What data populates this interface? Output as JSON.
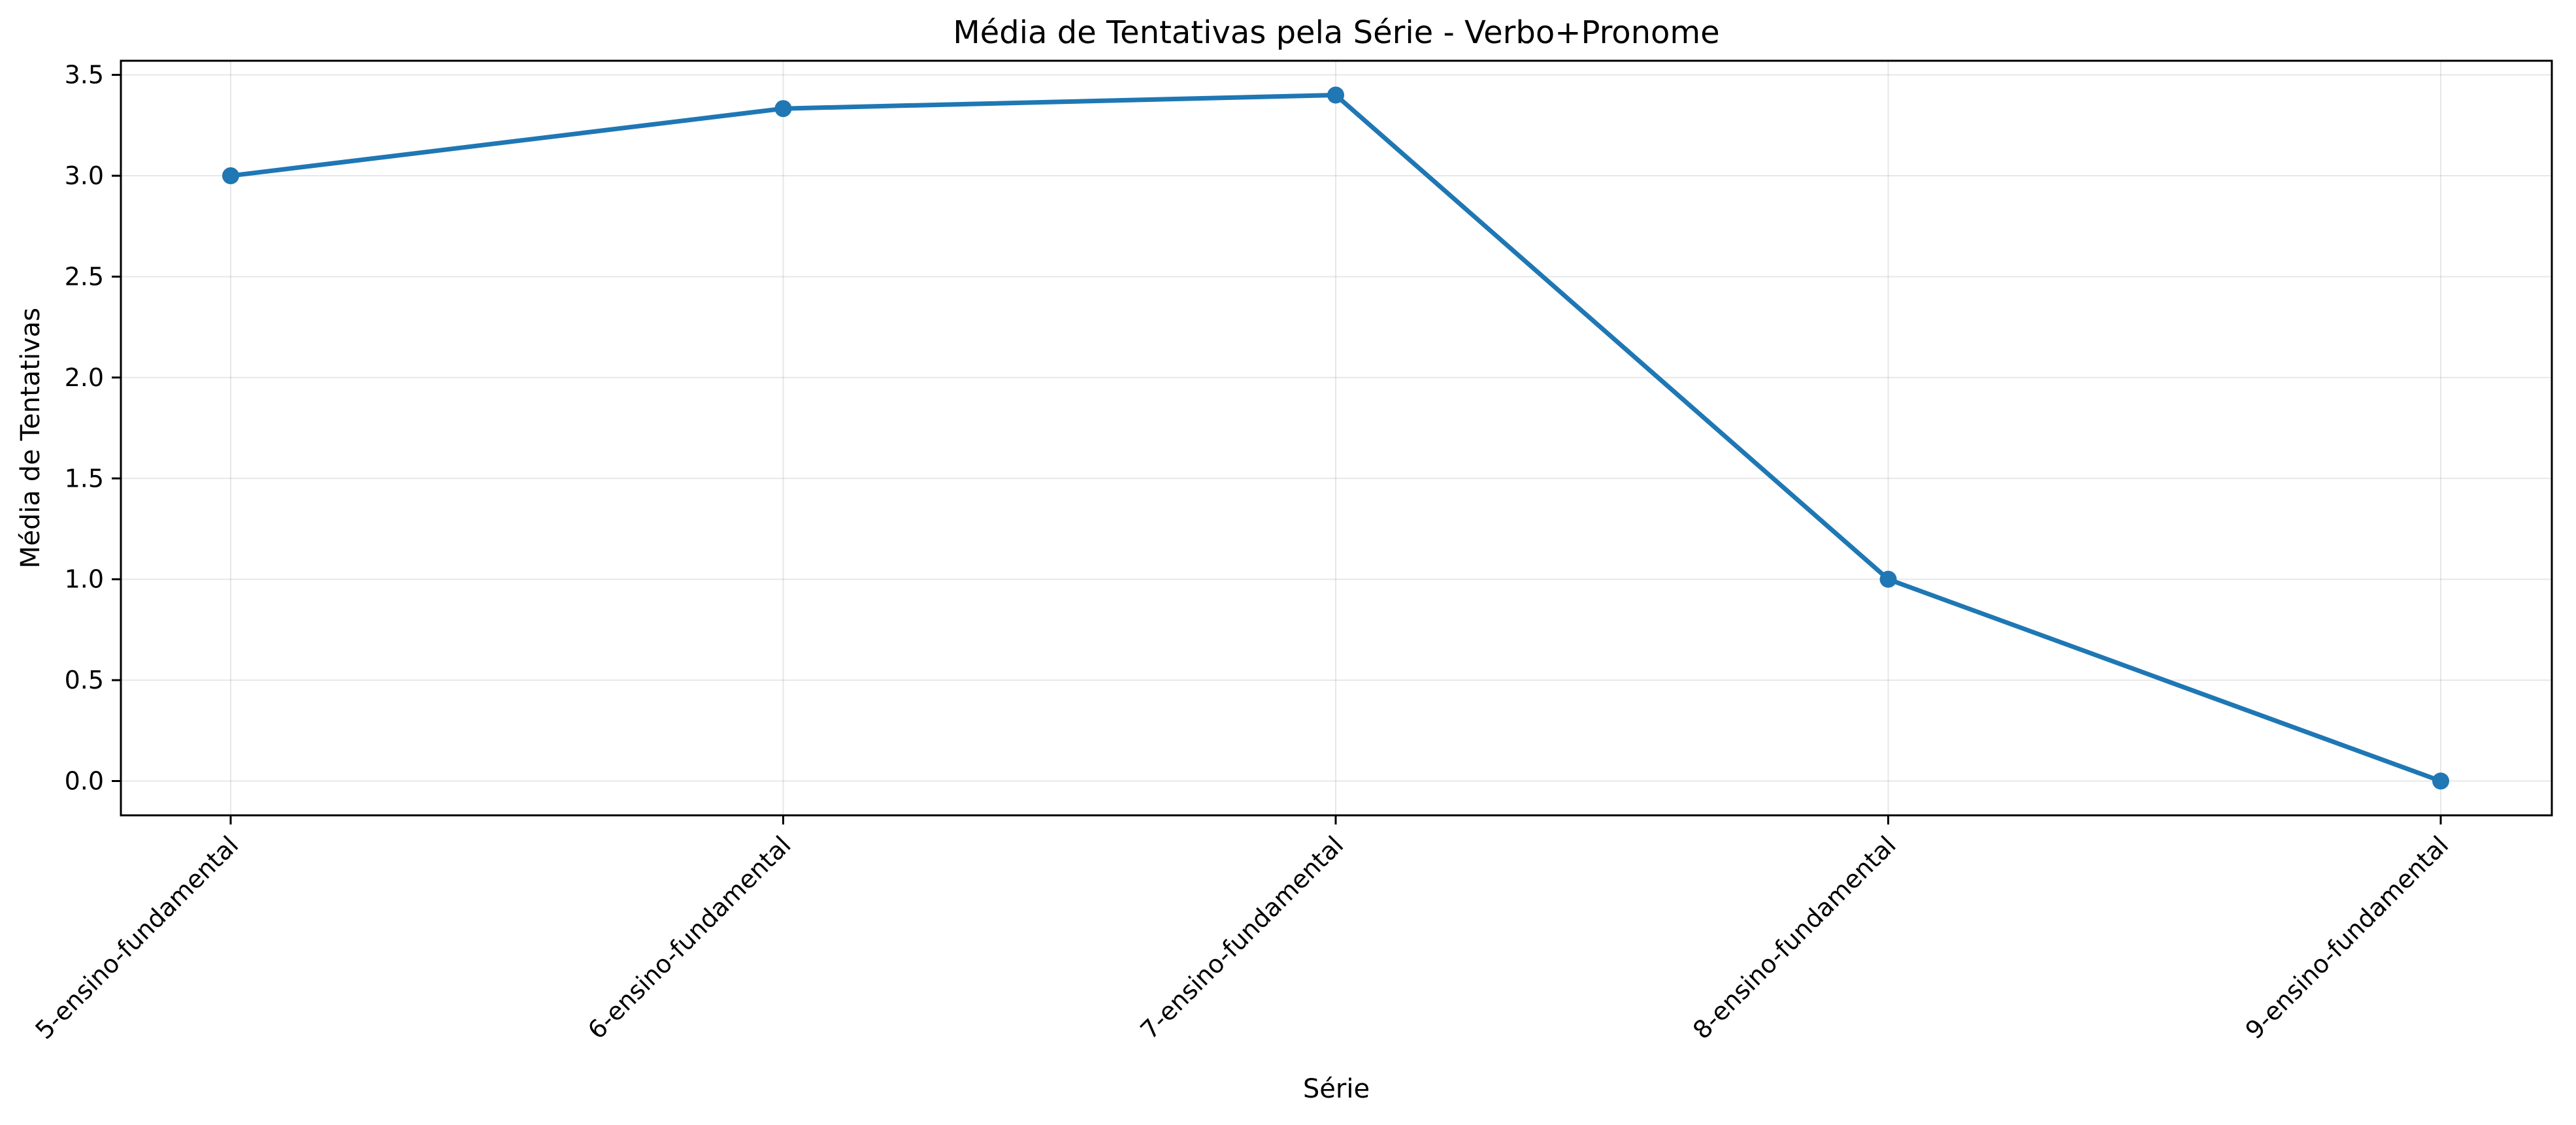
{
  "chart_data": {
    "type": "line",
    "title": "Média de Tentativas pela Série - Verbo+Pronome",
    "xlabel": "Série",
    "ylabel": "Média de Tentativas",
    "categories": [
      "5-ensino-fundamental",
      "6-ensino-fundamental",
      "7-ensino-fundamental",
      "8-ensino-fundamental",
      "9-ensino-fundamental"
    ],
    "series": [
      {
        "name": "Média de Tentativas",
        "values": [
          3.0,
          3.333,
          3.4,
          1.0,
          0.0
        ],
        "color": "#1f77b4"
      }
    ],
    "ylim": [
      -0.17,
      3.57
    ],
    "yticks": [
      0.0,
      0.5,
      1.0,
      1.5,
      2.0,
      2.5,
      3.0,
      3.5
    ],
    "ytick_labels": [
      "0.0",
      "0.5",
      "1.0",
      "1.5",
      "2.0",
      "2.5",
      "3.0",
      "3.5"
    ],
    "grid": true,
    "legend": "none"
  }
}
